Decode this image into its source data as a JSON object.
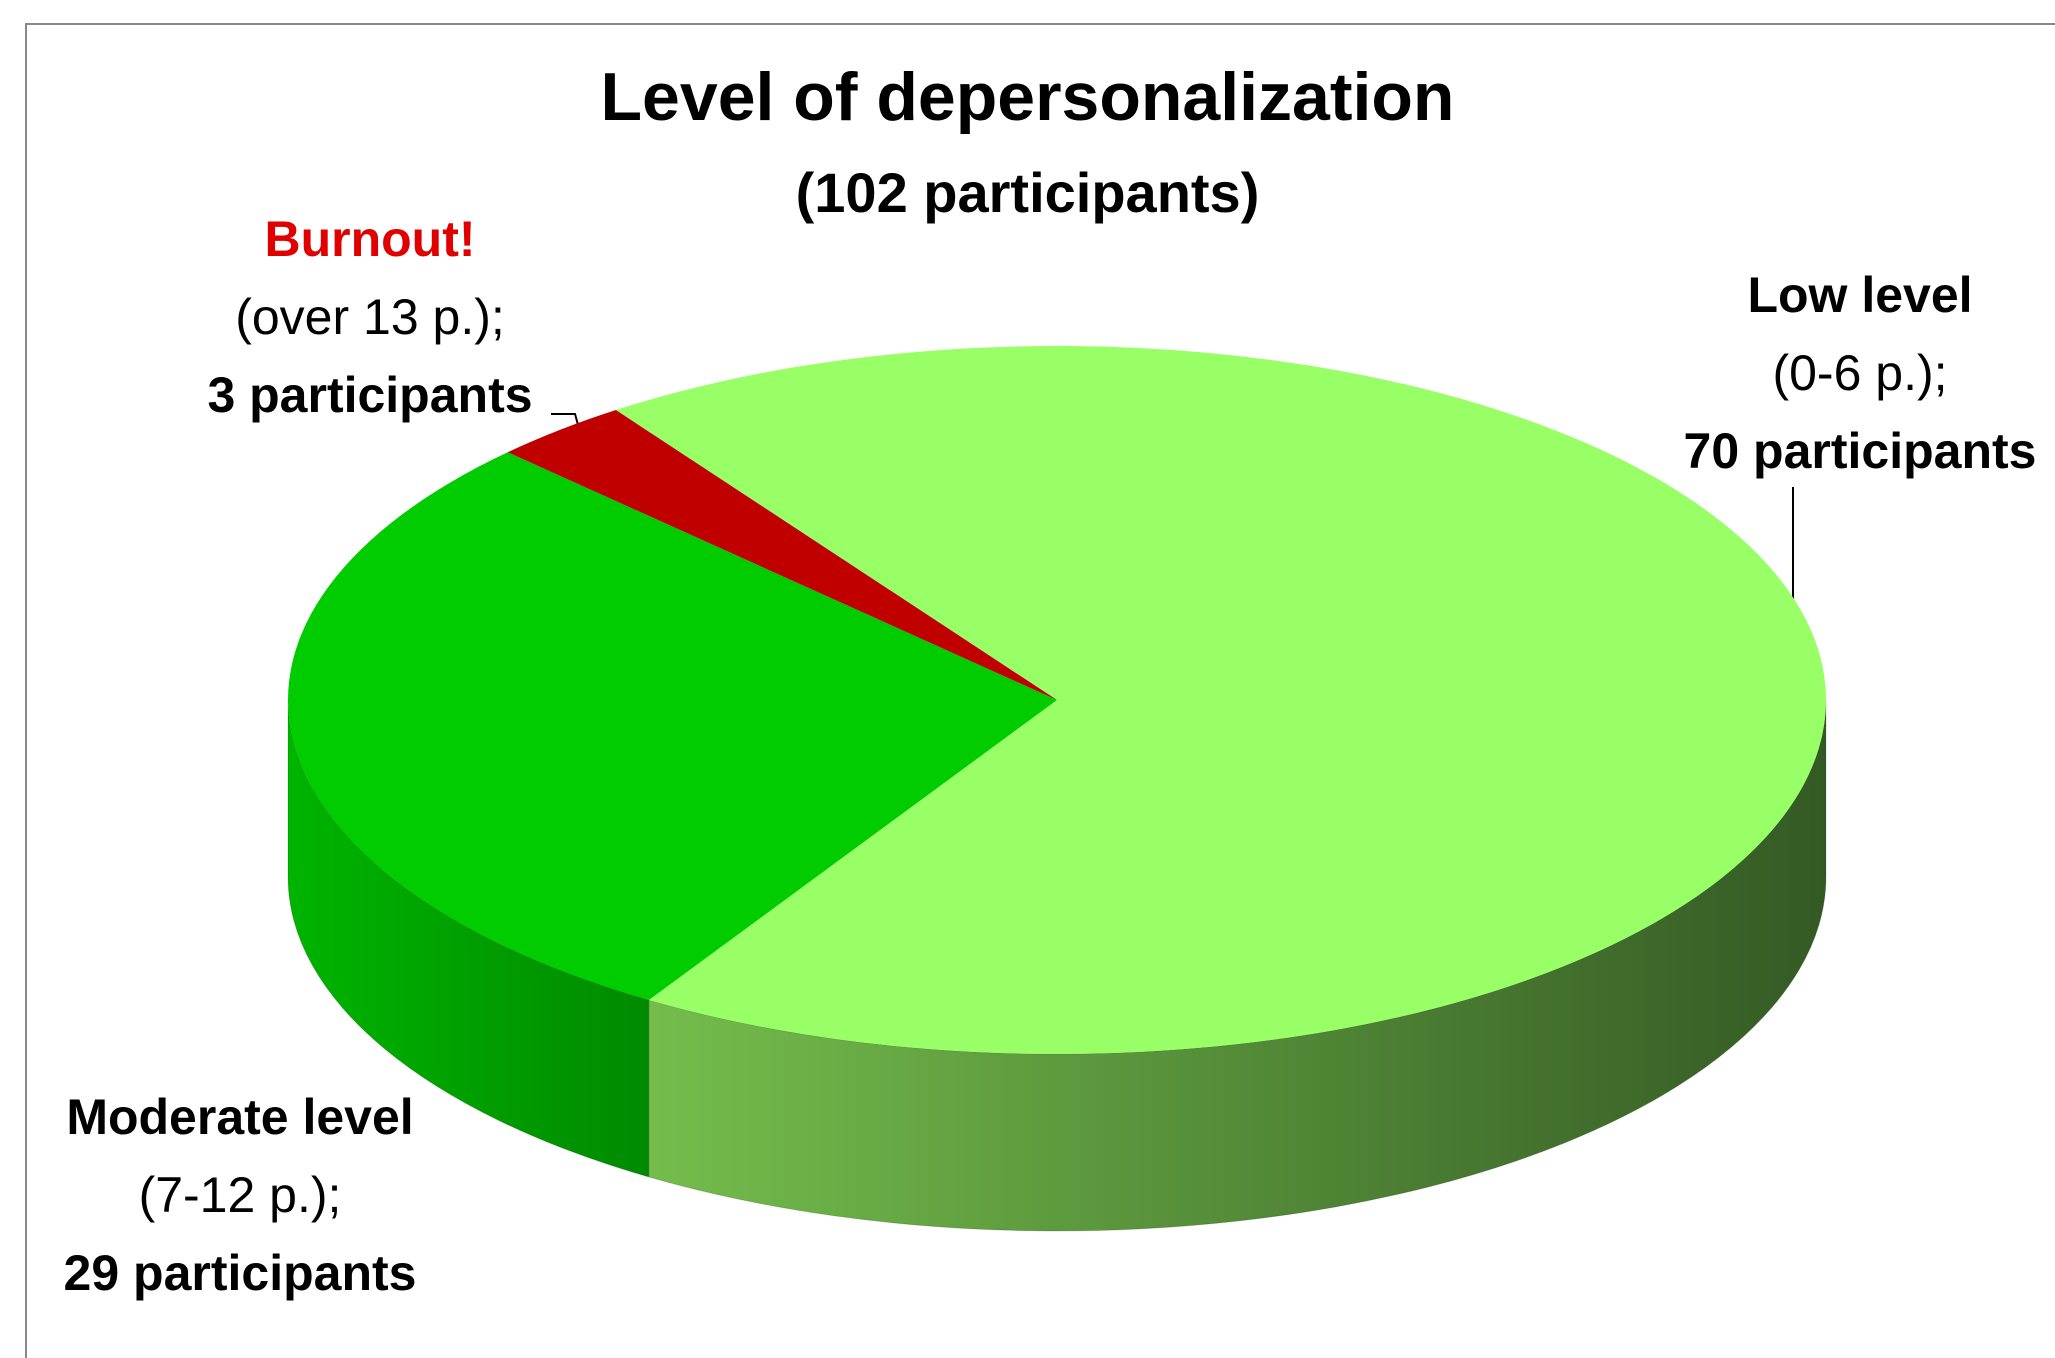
{
  "chart_data": {
    "type": "pie",
    "title": "Level of depersonalization",
    "subtitle": "(102 participants)",
    "categories": [
      "Low level",
      "Moderate level",
      "Burnout!"
    ],
    "ranges": [
      "(0-6 p.);",
      "(7-12 p.);",
      "(over 13 p.);"
    ],
    "values": [
      70,
      29,
      3
    ],
    "value_labels": [
      "70 participants",
      "29 participants",
      "3 participants"
    ],
    "colors": [
      "#99ff66",
      "#00cc00",
      "#c00000"
    ]
  }
}
